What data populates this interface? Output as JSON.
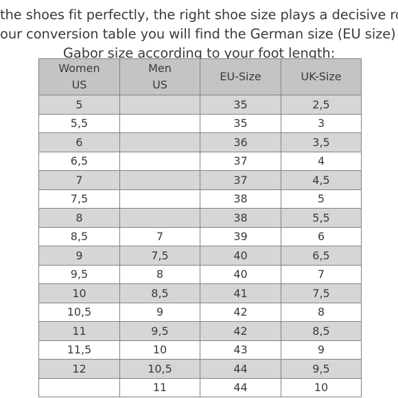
{
  "intro": {
    "line1": "the shoes fit perfectly, the right shoe size plays a decisive role. In",
    "line2": "our conversion table you will find the German size (EU size) and",
    "line3": "Gabor size according to your foot length:"
  },
  "table": {
    "headers": [
      [
        "Women",
        "US"
      ],
      [
        "Men",
        "US"
      ],
      [
        "EU-Size"
      ],
      [
        "UK-Size"
      ]
    ],
    "rows": [
      [
        "5",
        "",
        "35",
        "2,5"
      ],
      [
        "5,5",
        "",
        "35",
        "3"
      ],
      [
        "6",
        "",
        "36",
        "3,5"
      ],
      [
        "6,5",
        "",
        "37",
        "4"
      ],
      [
        "7",
        "",
        "37",
        "4,5"
      ],
      [
        "7,5",
        "",
        "38",
        "5"
      ],
      [
        "8",
        "",
        "38",
        "5,5"
      ],
      [
        "8,5",
        "7",
        "39",
        "6"
      ],
      [
        "9",
        "7,5",
        "40",
        "6,5"
      ],
      [
        "9,5",
        "8",
        "40",
        "7"
      ],
      [
        "10",
        "8,5",
        "41",
        "7,5"
      ],
      [
        "10,5",
        "9",
        "42",
        "8"
      ],
      [
        "11",
        "9,5",
        "42",
        "8,5"
      ],
      [
        "11,5",
        "10",
        "43",
        "9"
      ],
      [
        "12",
        "10,5",
        "44",
        "9,5"
      ],
      [
        "",
        "11",
        "44",
        "10"
      ]
    ]
  },
  "colors": {
    "header_bg": "#c4c4c4",
    "shaded_row_bg": "#d6d6d6",
    "border": "#808080",
    "text": "#3a3a3a"
  }
}
